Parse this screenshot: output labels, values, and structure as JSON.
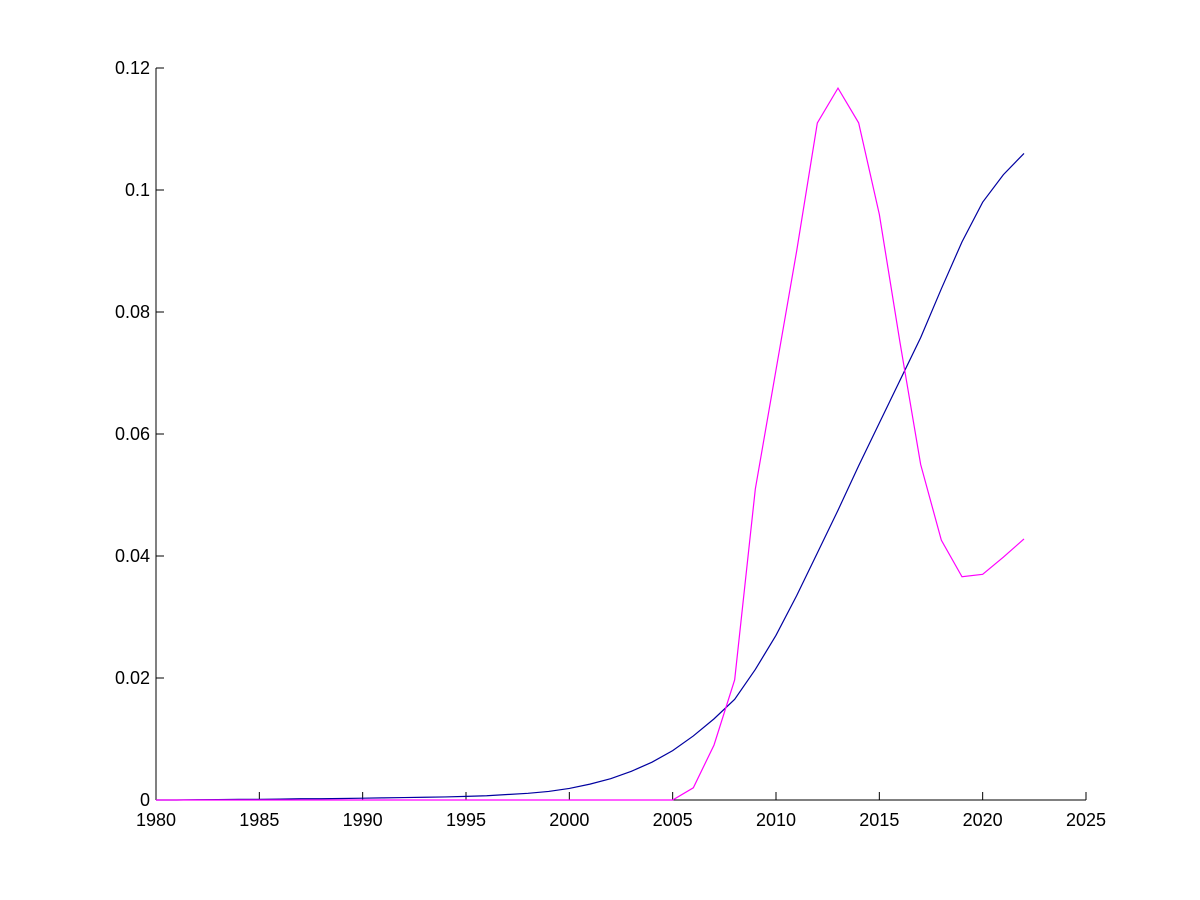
{
  "chart_data": {
    "type": "line",
    "x": [
      1980,
      1981,
      1982,
      1983,
      1984,
      1985,
      1986,
      1987,
      1988,
      1989,
      1990,
      1991,
      1992,
      1993,
      1994,
      1995,
      1996,
      1997,
      1998,
      1999,
      2000,
      2001,
      2002,
      2003,
      2004,
      2005,
      2006,
      2007,
      2008,
      2009,
      2010,
      2011,
      2012,
      2013,
      2014,
      2015,
      2016,
      2017,
      2018,
      2019,
      2020,
      2021,
      2022
    ],
    "series": [
      {
        "color": "#0000a0",
        "values": [
          0,
          0,
          5e-05,
          7e-05,
          0.0001,
          0.0001,
          0.00015,
          0.0002,
          0.0002,
          0.00025,
          0.0003,
          0.00035,
          0.0004,
          0.00045,
          0.0005,
          0.0006,
          0.0007,
          0.0009,
          0.0011,
          0.0014,
          0.0019,
          0.0026,
          0.0035,
          0.0047,
          0.0062,
          0.0081,
          0.0105,
          0.0133,
          0.0165,
          0.0214,
          0.027,
          0.0335,
          0.0405,
          0.0475,
          0.0548,
          0.0618,
          0.0688,
          0.0758,
          0.0838,
          0.0915,
          0.098,
          0.1025,
          0.106
        ]
      },
      {
        "color": "#ff00ff",
        "values": [
          0,
          0,
          0,
          0,
          0,
          0,
          0,
          0,
          0,
          0,
          0,
          0,
          0,
          0,
          0,
          0,
          0,
          0,
          0,
          0,
          0,
          0,
          0,
          0,
          0,
          0,
          0.002,
          0.009,
          0.0197,
          0.051,
          0.0705,
          0.09,
          0.111,
          0.1167,
          0.111,
          0.096,
          0.075,
          0.055,
          0.0426,
          0.0366,
          0.037,
          0.0398,
          0.0428
        ]
      }
    ],
    "xlim": [
      1980,
      2025
    ],
    "xticks": [
      1980,
      1985,
      1990,
      1995,
      2000,
      2005,
      2010,
      2015,
      2020,
      2025
    ],
    "ylim": [
      0,
      0.12
    ],
    "yticks": [
      0,
      0.02,
      0.04,
      0.06,
      0.08,
      0.1,
      0.12
    ],
    "grid": false
  }
}
